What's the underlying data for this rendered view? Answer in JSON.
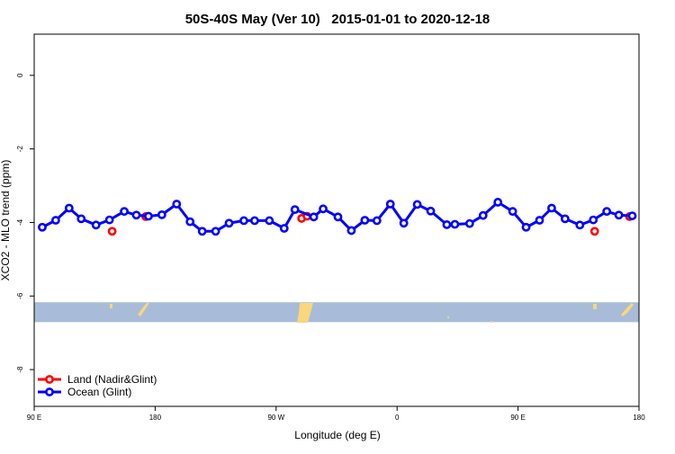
{
  "chart_data": {
    "type": "line",
    "title": "50S-40S May (Ver 10)   2015-01-01 to 2020-12-18",
    "xlabel": "Longitude (deg E)",
    "ylabel": "XCO2 - MLO trend (ppm)",
    "xlim": [
      90,
      540
    ],
    "ylim": [
      -9.0,
      1.12
    ],
    "x_note": "continuous longitude, wraps 90E -> 180 -> 0 -> 180",
    "xticks": [
      {
        "value": 90,
        "label": "90 E"
      },
      {
        "value": 180,
        "label": "180"
      },
      {
        "value": 270,
        "label": "90 W"
      },
      {
        "value": 360,
        "label": "0"
      },
      {
        "value": 450,
        "label": "90 E"
      },
      {
        "value": 540,
        "label": "180"
      }
    ],
    "yticks": [
      {
        "value": 0,
        "label": "0"
      },
      {
        "value": -2,
        "label": "-2"
      },
      {
        "value": -4,
        "label": "-4"
      },
      {
        "value": -6,
        "label": "-6"
      },
      {
        "value": -8,
        "label": "-8"
      }
    ],
    "grid": false,
    "legend_position": "bottom-left",
    "series": [
      {
        "name": "Land (Nadir&Glint)",
        "color": "#ff0000",
        "lines": false,
        "x": [
          148,
          173,
          289,
          293,
          507,
          533
        ],
        "y": [
          -4.24,
          -3.84,
          -3.89,
          -3.83,
          -4.24,
          -3.84
        ]
      },
      {
        "name": "Ocean (Glint)",
        "color": "#0000ff",
        "lines": true,
        "x": [
          96,
          106,
          116,
          125,
          136,
          146,
          157,
          166,
          175,
          185,
          196,
          206,
          215,
          225,
          235,
          246,
          254,
          265,
          276,
          284,
          298,
          305,
          316,
          326,
          336,
          345,
          355,
          365,
          375,
          385,
          397,
          403,
          414,
          424,
          435,
          446,
          456,
          466,
          475,
          485,
          496,
          506,
          516,
          525,
          535
        ],
        "y": [
          -4.13,
          -3.94,
          -3.61,
          -3.9,
          -4.07,
          -3.93,
          -3.7,
          -3.8,
          -3.83,
          -3.79,
          -3.5,
          -3.98,
          -4.24,
          -4.24,
          -4.02,
          -3.95,
          -3.95,
          -3.95,
          -4.16,
          -3.65,
          -3.85,
          -3.63,
          -3.85,
          -4.22,
          -3.94,
          -3.95,
          -3.5,
          -4.02,
          -3.51,
          -3.69,
          -4.06,
          -4.05,
          -4.03,
          -3.81,
          -3.45,
          -3.7,
          -4.13,
          -3.94,
          -3.61,
          -3.9,
          -4.07,
          -3.93,
          -3.7,
          -3.8,
          -3.82
        ]
      }
    ],
    "land_band": {
      "y_from": -6.17,
      "y_to": -6.71,
      "ocean_color": "#a8bcd9",
      "land_color": "#f9d77a"
    }
  }
}
